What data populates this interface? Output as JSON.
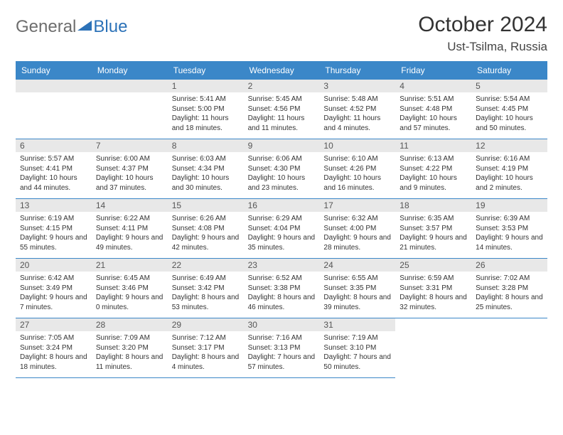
{
  "branding": {
    "word1": "General",
    "word2": "Blue",
    "icon_color": "#2c72b8"
  },
  "title": {
    "month": "October 2024",
    "location": "Ust-Tsilma, Russia"
  },
  "colors": {
    "header_bg": "#3b87c8",
    "header_text": "#ffffff",
    "daynum_bg": "#e8e8e8",
    "daynum_text": "#555555",
    "border": "#3b87c8",
    "body_text": "#333333"
  },
  "calendar": {
    "day_labels": [
      "Sunday",
      "Monday",
      "Tuesday",
      "Wednesday",
      "Thursday",
      "Friday",
      "Saturday"
    ],
    "leading_blanks": 2,
    "days": [
      {
        "n": "1",
        "sunrise": "Sunrise: 5:41 AM",
        "sunset": "Sunset: 5:00 PM",
        "daylight": "Daylight: 11 hours and 18 minutes."
      },
      {
        "n": "2",
        "sunrise": "Sunrise: 5:45 AM",
        "sunset": "Sunset: 4:56 PM",
        "daylight": "Daylight: 11 hours and 11 minutes."
      },
      {
        "n": "3",
        "sunrise": "Sunrise: 5:48 AM",
        "sunset": "Sunset: 4:52 PM",
        "daylight": "Daylight: 11 hours and 4 minutes."
      },
      {
        "n": "4",
        "sunrise": "Sunrise: 5:51 AM",
        "sunset": "Sunset: 4:48 PM",
        "daylight": "Daylight: 10 hours and 57 minutes."
      },
      {
        "n": "5",
        "sunrise": "Sunrise: 5:54 AM",
        "sunset": "Sunset: 4:45 PM",
        "daylight": "Daylight: 10 hours and 50 minutes."
      },
      {
        "n": "6",
        "sunrise": "Sunrise: 5:57 AM",
        "sunset": "Sunset: 4:41 PM",
        "daylight": "Daylight: 10 hours and 44 minutes."
      },
      {
        "n": "7",
        "sunrise": "Sunrise: 6:00 AM",
        "sunset": "Sunset: 4:37 PM",
        "daylight": "Daylight: 10 hours and 37 minutes."
      },
      {
        "n": "8",
        "sunrise": "Sunrise: 6:03 AM",
        "sunset": "Sunset: 4:34 PM",
        "daylight": "Daylight: 10 hours and 30 minutes."
      },
      {
        "n": "9",
        "sunrise": "Sunrise: 6:06 AM",
        "sunset": "Sunset: 4:30 PM",
        "daylight": "Daylight: 10 hours and 23 minutes."
      },
      {
        "n": "10",
        "sunrise": "Sunrise: 6:10 AM",
        "sunset": "Sunset: 4:26 PM",
        "daylight": "Daylight: 10 hours and 16 minutes."
      },
      {
        "n": "11",
        "sunrise": "Sunrise: 6:13 AM",
        "sunset": "Sunset: 4:22 PM",
        "daylight": "Daylight: 10 hours and 9 minutes."
      },
      {
        "n": "12",
        "sunrise": "Sunrise: 6:16 AM",
        "sunset": "Sunset: 4:19 PM",
        "daylight": "Daylight: 10 hours and 2 minutes."
      },
      {
        "n": "13",
        "sunrise": "Sunrise: 6:19 AM",
        "sunset": "Sunset: 4:15 PM",
        "daylight": "Daylight: 9 hours and 55 minutes."
      },
      {
        "n": "14",
        "sunrise": "Sunrise: 6:22 AM",
        "sunset": "Sunset: 4:11 PM",
        "daylight": "Daylight: 9 hours and 49 minutes."
      },
      {
        "n": "15",
        "sunrise": "Sunrise: 6:26 AM",
        "sunset": "Sunset: 4:08 PM",
        "daylight": "Daylight: 9 hours and 42 minutes."
      },
      {
        "n": "16",
        "sunrise": "Sunrise: 6:29 AM",
        "sunset": "Sunset: 4:04 PM",
        "daylight": "Daylight: 9 hours and 35 minutes."
      },
      {
        "n": "17",
        "sunrise": "Sunrise: 6:32 AM",
        "sunset": "Sunset: 4:00 PM",
        "daylight": "Daylight: 9 hours and 28 minutes."
      },
      {
        "n": "18",
        "sunrise": "Sunrise: 6:35 AM",
        "sunset": "Sunset: 3:57 PM",
        "daylight": "Daylight: 9 hours and 21 minutes."
      },
      {
        "n": "19",
        "sunrise": "Sunrise: 6:39 AM",
        "sunset": "Sunset: 3:53 PM",
        "daylight": "Daylight: 9 hours and 14 minutes."
      },
      {
        "n": "20",
        "sunrise": "Sunrise: 6:42 AM",
        "sunset": "Sunset: 3:49 PM",
        "daylight": "Daylight: 9 hours and 7 minutes."
      },
      {
        "n": "21",
        "sunrise": "Sunrise: 6:45 AM",
        "sunset": "Sunset: 3:46 PM",
        "daylight": "Daylight: 9 hours and 0 minutes."
      },
      {
        "n": "22",
        "sunrise": "Sunrise: 6:49 AM",
        "sunset": "Sunset: 3:42 PM",
        "daylight": "Daylight: 8 hours and 53 minutes."
      },
      {
        "n": "23",
        "sunrise": "Sunrise: 6:52 AM",
        "sunset": "Sunset: 3:38 PM",
        "daylight": "Daylight: 8 hours and 46 minutes."
      },
      {
        "n": "24",
        "sunrise": "Sunrise: 6:55 AM",
        "sunset": "Sunset: 3:35 PM",
        "daylight": "Daylight: 8 hours and 39 minutes."
      },
      {
        "n": "25",
        "sunrise": "Sunrise: 6:59 AM",
        "sunset": "Sunset: 3:31 PM",
        "daylight": "Daylight: 8 hours and 32 minutes."
      },
      {
        "n": "26",
        "sunrise": "Sunrise: 7:02 AM",
        "sunset": "Sunset: 3:28 PM",
        "daylight": "Daylight: 8 hours and 25 minutes."
      },
      {
        "n": "27",
        "sunrise": "Sunrise: 7:05 AM",
        "sunset": "Sunset: 3:24 PM",
        "daylight": "Daylight: 8 hours and 18 minutes."
      },
      {
        "n": "28",
        "sunrise": "Sunrise: 7:09 AM",
        "sunset": "Sunset: 3:20 PM",
        "daylight": "Daylight: 8 hours and 11 minutes."
      },
      {
        "n": "29",
        "sunrise": "Sunrise: 7:12 AM",
        "sunset": "Sunset: 3:17 PM",
        "daylight": "Daylight: 8 hours and 4 minutes."
      },
      {
        "n": "30",
        "sunrise": "Sunrise: 7:16 AM",
        "sunset": "Sunset: 3:13 PM",
        "daylight": "Daylight: 7 hours and 57 minutes."
      },
      {
        "n": "31",
        "sunrise": "Sunrise: 7:19 AM",
        "sunset": "Sunset: 3:10 PM",
        "daylight": "Daylight: 7 hours and 50 minutes."
      }
    ]
  }
}
